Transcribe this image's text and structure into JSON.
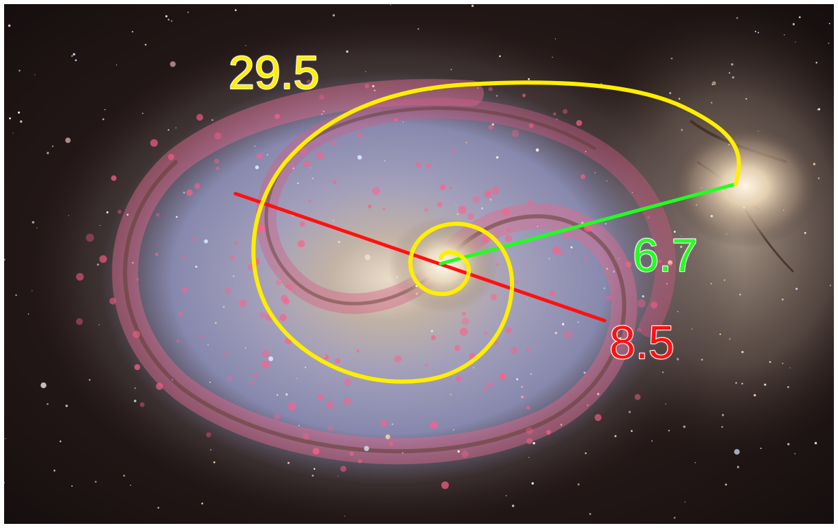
{
  "image": {
    "subject": "spiral-galaxy",
    "background_color": "#1a1210"
  },
  "annotations": {
    "spiral_label": "29.5",
    "green_line_label": "6.7",
    "red_line_label": "8.5"
  },
  "colors": {
    "spiral": "#ffee00",
    "green_line": "#22ff22",
    "red_line": "#ff1111",
    "label_yellow": "#ffee00",
    "label_green": "#22ff22",
    "label_red": "#ff1111"
  }
}
